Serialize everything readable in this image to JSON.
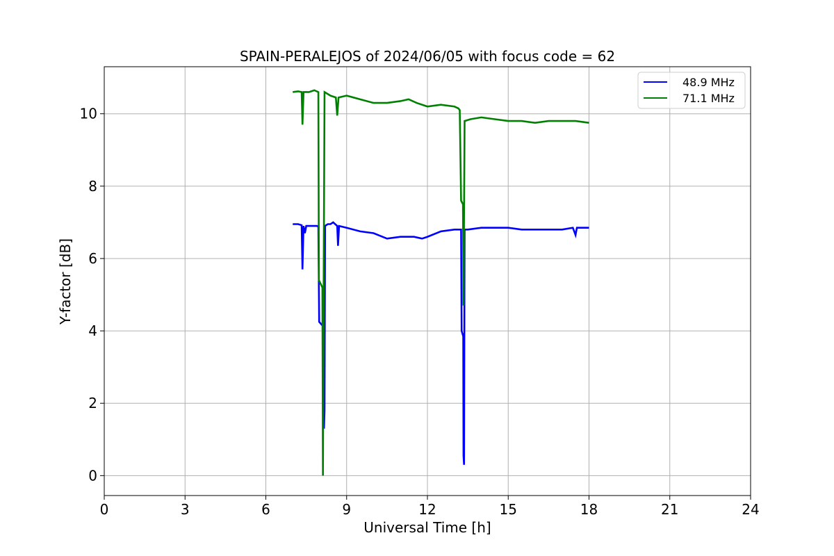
{
  "chart_data": {
    "type": "line",
    "title": "SPAIN-PERALEJOS of 2024/06/05 with focus code = 62",
    "xlabel": "Universal Time [h]",
    "ylabel": "Y-factor [dB]",
    "xlim": [
      0,
      24
    ],
    "ylim": [
      -0.55,
      11.3
    ],
    "xticks": [
      0,
      3,
      6,
      9,
      12,
      15,
      18,
      21,
      24
    ],
    "yticks": [
      0,
      2,
      4,
      6,
      8,
      10
    ],
    "grid": true,
    "legend_position": "top-right",
    "series": [
      {
        "name": "48.9 MHz",
        "color": "#0000ff",
        "points": [
          [
            7.0,
            6.95
          ],
          [
            7.2,
            6.95
          ],
          [
            7.33,
            6.92
          ],
          [
            7.36,
            5.7
          ],
          [
            7.4,
            6.9
          ],
          [
            7.45,
            6.7
          ],
          [
            7.5,
            6.9
          ],
          [
            7.7,
            6.9
          ],
          [
            7.9,
            6.9
          ],
          [
            7.95,
            6.88
          ],
          [
            7.98,
            4.25
          ],
          [
            8.1,
            4.15
          ],
          [
            8.15,
            4.15
          ],
          [
            8.16,
            1.3
          ],
          [
            8.18,
            1.8
          ],
          [
            8.2,
            6.9
          ],
          [
            8.3,
            6.95
          ],
          [
            8.4,
            6.95
          ],
          [
            8.5,
            7.0
          ],
          [
            8.65,
            6.9
          ],
          [
            8.68,
            6.35
          ],
          [
            8.72,
            6.9
          ],
          [
            9.0,
            6.85
          ],
          [
            9.5,
            6.75
          ],
          [
            10.0,
            6.7
          ],
          [
            10.5,
            6.55
          ],
          [
            11.0,
            6.6
          ],
          [
            11.5,
            6.6
          ],
          [
            11.8,
            6.55
          ],
          [
            12.0,
            6.6
          ],
          [
            12.5,
            6.75
          ],
          [
            13.0,
            6.8
          ],
          [
            13.25,
            6.8
          ],
          [
            13.27,
            4.0
          ],
          [
            13.33,
            3.85
          ],
          [
            13.34,
            0.55
          ],
          [
            13.36,
            0.3
          ],
          [
            13.38,
            6.8
          ],
          [
            13.5,
            6.8
          ],
          [
            14.0,
            6.85
          ],
          [
            14.5,
            6.85
          ],
          [
            15.0,
            6.85
          ],
          [
            15.5,
            6.8
          ],
          [
            16.0,
            6.8
          ],
          [
            16.5,
            6.8
          ],
          [
            17.0,
            6.8
          ],
          [
            17.4,
            6.85
          ],
          [
            17.5,
            6.65
          ],
          [
            17.55,
            6.85
          ],
          [
            18.0,
            6.85
          ]
        ]
      },
      {
        "name": "71.1 MHz",
        "color": "#008000",
        "points": [
          [
            7.0,
            10.6
          ],
          [
            7.2,
            10.62
          ],
          [
            7.33,
            10.6
          ],
          [
            7.36,
            9.7
          ],
          [
            7.4,
            10.6
          ],
          [
            7.6,
            10.6
          ],
          [
            7.8,
            10.65
          ],
          [
            7.95,
            10.6
          ],
          [
            7.97,
            5.4
          ],
          [
            8.1,
            5.2
          ],
          [
            8.12,
            0.0
          ],
          [
            8.15,
            5.7
          ],
          [
            8.18,
            10.6
          ],
          [
            8.4,
            10.5
          ],
          [
            8.6,
            10.45
          ],
          [
            8.65,
            9.95
          ],
          [
            8.7,
            10.45
          ],
          [
            9.0,
            10.5
          ],
          [
            9.5,
            10.4
          ],
          [
            10.0,
            10.3
          ],
          [
            10.5,
            10.3
          ],
          [
            11.0,
            10.35
          ],
          [
            11.3,
            10.4
          ],
          [
            11.6,
            10.3
          ],
          [
            12.0,
            10.2
          ],
          [
            12.5,
            10.25
          ],
          [
            13.0,
            10.2
          ],
          [
            13.15,
            10.15
          ],
          [
            13.2,
            10.1
          ],
          [
            13.25,
            7.6
          ],
          [
            13.32,
            7.5
          ],
          [
            13.34,
            4.7
          ],
          [
            13.38,
            9.8
          ],
          [
            13.6,
            9.85
          ],
          [
            14.0,
            9.9
          ],
          [
            14.5,
            9.85
          ],
          [
            15.0,
            9.8
          ],
          [
            15.5,
            9.8
          ],
          [
            16.0,
            9.75
          ],
          [
            16.5,
            9.8
          ],
          [
            17.0,
            9.8
          ],
          [
            17.5,
            9.8
          ],
          [
            18.0,
            9.75
          ]
        ]
      }
    ]
  }
}
